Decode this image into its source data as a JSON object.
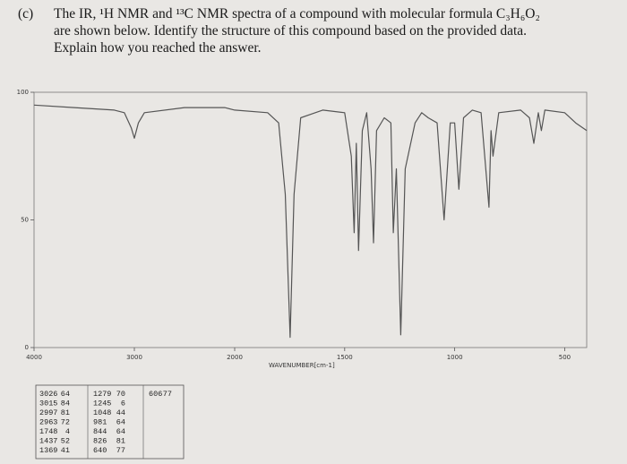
{
  "question": {
    "label": "(c)",
    "lines": [
      "The IR, ¹H NMR and ¹³C NMR spectra of a compound with molecular formula C₃H₆O₂",
      "are shown below. Identify the structure of this compound based on the provided data.",
      "Explain how you reached the answer."
    ]
  },
  "chart_data": {
    "type": "line",
    "x_label": "WAVENUMBER[cm-1]",
    "x": [
      4000,
      3600,
      3200,
      3100,
      3030,
      3000,
      2960,
      2900,
      2500,
      2100,
      2000,
      1850,
      1800,
      1770,
      1748,
      1730,
      1700,
      1600,
      1500,
      1470,
      1457,
      1447,
      1437,
      1420,
      1400,
      1380,
      1369,
      1355,
      1320,
      1290,
      1279,
      1265,
      1245,
      1225,
      1180,
      1150,
      1120,
      1080,
      1048,
      1020,
      1000,
      981,
      960,
      920,
      880,
      844,
      835,
      826,
      800,
      700,
      660,
      640,
      620,
      606,
      590,
      500,
      450,
      400
    ],
    "values": [
      95,
      94,
      93,
      92,
      86,
      82,
      88,
      92,
      94,
      94,
      93,
      92,
      88,
      60,
      4,
      60,
      90,
      93,
      92,
      75,
      45,
      80,
      38,
      85,
      92,
      70,
      41,
      85,
      90,
      88,
      45,
      70,
      5,
      70,
      88,
      92,
      90,
      88,
      50,
      88,
      88,
      62,
      90,
      93,
      92,
      55,
      85,
      75,
      92,
      93,
      90,
      80,
      92,
      85,
      93,
      92,
      88,
      85
    ],
    "color": "#555555",
    "xlim": [
      4000,
      400
    ],
    "x_scale_break": 2000,
    "xticks": [
      4000,
      3000,
      2000,
      1500,
      1000,
      500
    ],
    "ylim": [
      0,
      100
    ],
    "yticks": [
      0,
      50,
      100
    ],
    "grid": false
  },
  "peak_table": {
    "columns": [
      [
        [
          3026,
          64
        ],
        [
          3015,
          84
        ],
        [
          2997,
          81
        ],
        [
          2963,
          72
        ],
        [
          1748,
          4
        ],
        [
          1437,
          52
        ],
        [
          1369,
          41
        ]
      ],
      [
        [
          1279,
          70
        ],
        [
          1245,
          6
        ],
        [
          1048,
          44
        ],
        [
          981,
          64
        ],
        [
          844,
          64
        ],
        [
          826,
          81
        ],
        [
          640,
          77
        ]
      ],
      [
        [
          606,
          77
        ]
      ]
    ]
  }
}
